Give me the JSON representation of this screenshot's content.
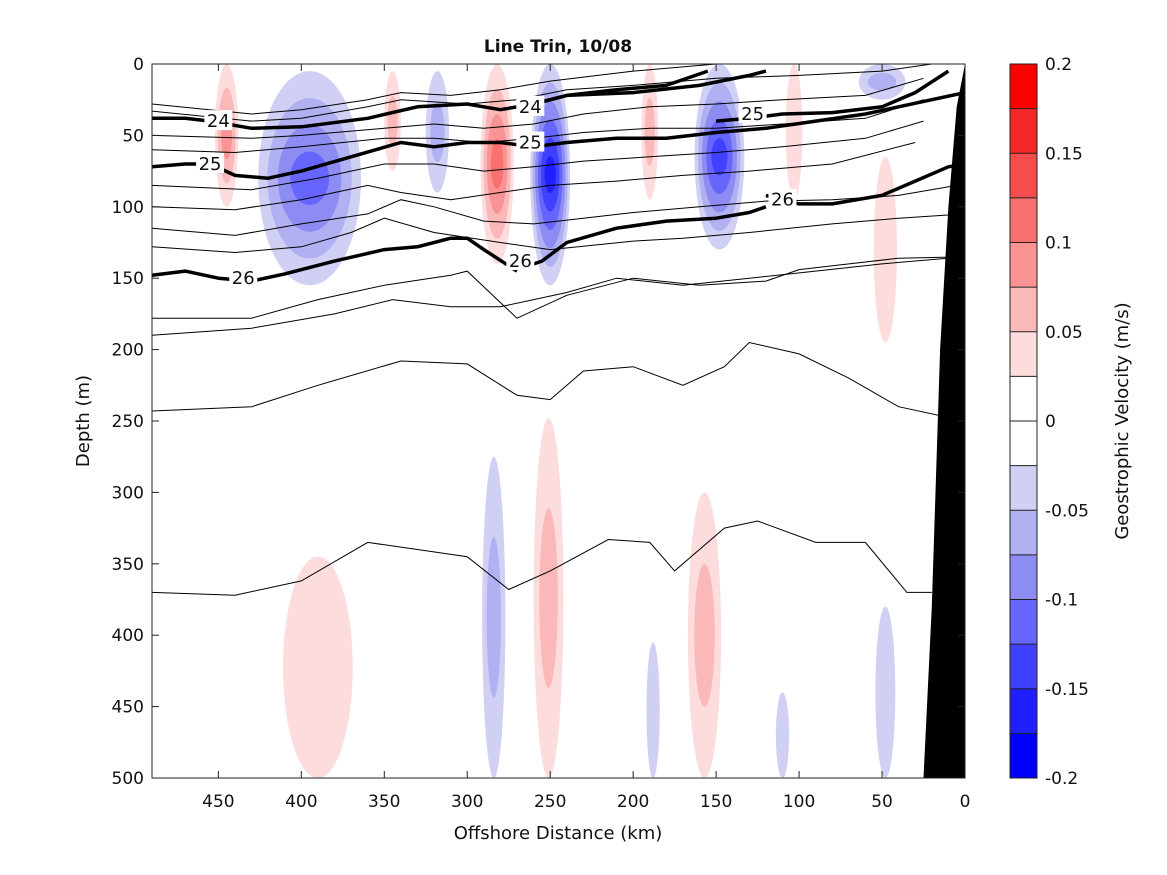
{
  "chart_data": {
    "type": "contour",
    "title": "Line Trin, 10/08",
    "xlabel": "Offshore Distance (km)",
    "ylabel": "Depth (m)",
    "colorbar_label": "Geostrophic Velocity (m/s)",
    "x_reversed": true,
    "y_reversed": true,
    "xlim": [
      490,
      0
    ],
    "ylim": [
      500,
      0
    ],
    "x_ticks": [
      450,
      400,
      350,
      300,
      250,
      200,
      150,
      100,
      50,
      0
    ],
    "y_ticks": [
      0,
      50,
      100,
      150,
      200,
      250,
      300,
      350,
      400,
      450,
      500
    ],
    "colorbar": {
      "range": [
        -0.2,
        0.2
      ],
      "levels": [
        -0.2,
        -0.175,
        -0.15,
        -0.125,
        -0.1,
        -0.075,
        -0.05,
        -0.025,
        0,
        0.025,
        0.05,
        0.075,
        0.1,
        0.125,
        0.15,
        0.175,
        0.2
      ],
      "tick_values": [
        0.2,
        0.15,
        0.1,
        0.05,
        0,
        -0.05,
        -0.1,
        -0.15,
        -0.2
      ],
      "tick_labels": [
        "0.2",
        "0.15",
        "0.1",
        "0.05",
        "0",
        "-0.05",
        "-0.1",
        "-0.15",
        "-0.2"
      ],
      "colors": [
        "#0000ff",
        "#2020ff",
        "#4040ff",
        "#6666ff",
        "#8c8cf2",
        "#b0b0f2",
        "#d0d0f5",
        "#ffffff",
        "#ffffff",
        "#fcdcdc",
        "#fbb8b8",
        "#fa9494",
        "#f87070",
        "#f64c4c",
        "#f42828",
        "#ff0000"
      ]
    },
    "velocity_cores": [
      {
        "x": 445,
        "y0": 0,
        "y1": 100,
        "w": 14,
        "v": 0.08
      },
      {
        "x": 395,
        "y0": 5,
        "y1": 155,
        "w": 62,
        "v": -0.1
      },
      {
        "x": 345,
        "y0": 5,
        "y1": 75,
        "w": 10,
        "v": 0.05
      },
      {
        "x": 318,
        "y0": 5,
        "y1": 90,
        "w": 14,
        "v": -0.06
      },
      {
        "x": 282,
        "y0": 0,
        "y1": 140,
        "w": 20,
        "v": 0.11
      },
      {
        "x": 250,
        "y0": 0,
        "y1": 155,
        "w": 24,
        "v": -0.16
      },
      {
        "x": 190,
        "y0": 0,
        "y1": 95,
        "w": 10,
        "v": 0.05
      },
      {
        "x": 148,
        "y0": 0,
        "y1": 130,
        "w": 30,
        "v": -0.13
      },
      {
        "x": 103,
        "y0": 0,
        "y1": 95,
        "w": 10,
        "v": 0.04
      },
      {
        "x": 50,
        "y0": 0,
        "y1": 25,
        "w": 28,
        "v": -0.05
      },
      {
        "x": 48,
        "y0": 65,
        "y1": 195,
        "w": 14,
        "v": 0.04
      },
      {
        "x": 390,
        "y0": 345,
        "y1": 500,
        "w": 42,
        "v": 0.04
      },
      {
        "x": 284,
        "y0": 275,
        "y1": 500,
        "w": 14,
        "v": -0.055
      },
      {
        "x": 251,
        "y0": 248,
        "y1": 500,
        "w": 18,
        "v": 0.065
      },
      {
        "x": 188,
        "y0": 405,
        "y1": 500,
        "w": 8,
        "v": -0.04
      },
      {
        "x": 157,
        "y0": 300,
        "y1": 500,
        "w": 20,
        "v": 0.05
      },
      {
        "x": 110,
        "y0": 440,
        "y1": 500,
        "w": 8,
        "v": -0.04
      },
      {
        "x": 48,
        "y0": 380,
        "y1": 500,
        "w": 12,
        "v": -0.04
      }
    ],
    "isopycnals_thin": [
      {
        "x": [
          490,
          430,
          400,
          360,
          340,
          310,
          280,
          250,
          200,
          150,
          100,
          50,
          10
        ],
        "y": [
          28,
          35,
          32,
          25,
          20,
          22,
          18,
          12,
          5,
          0,
          0,
          0,
          0
        ]
      },
      {
        "x": [
          490,
          430,
          400,
          360,
          340,
          300,
          270,
          240,
          200,
          150,
          100,
          50,
          20
        ],
        "y": [
          33,
          40,
          38,
          30,
          25,
          28,
          25,
          18,
          15,
          10,
          8,
          5,
          0
        ]
      },
      {
        "x": [
          490,
          430,
          400,
          350,
          320,
          290,
          260,
          230,
          190,
          150,
          110,
          60,
          25
        ],
        "y": [
          50,
          52,
          50,
          45,
          42,
          45,
          42,
          35,
          30,
          28,
          25,
          22,
          10
        ]
      },
      {
        "x": [
          490,
          440,
          400,
          350,
          320,
          290,
          260,
          230,
          190,
          150,
          110,
          60,
          25
        ],
        "y": [
          60,
          62,
          58,
          52,
          52,
          55,
          52,
          48,
          45,
          45,
          42,
          38,
          25
        ]
      },
      {
        "x": [
          490,
          430,
          390,
          350,
          320,
          290,
          260,
          230,
          190,
          150,
          110,
          60,
          25
        ],
        "y": [
          85,
          88,
          80,
          70,
          70,
          75,
          72,
          68,
          65,
          62,
          58,
          52,
          40
        ]
      },
      {
        "x": [
          490,
          440,
          400,
          360,
          340,
          310,
          280,
          250,
          210,
          170,
          130,
          80,
          30
        ],
        "y": [
          100,
          102,
          95,
          85,
          90,
          95,
          90,
          85,
          82,
          78,
          75,
          70,
          55
        ]
      },
      {
        "x": [
          490,
          440,
          400,
          360,
          340,
          320,
          290,
          260,
          230,
          200,
          160,
          120,
          80,
          40,
          5
        ],
        "y": [
          115,
          120,
          112,
          105,
          95,
          100,
          110,
          112,
          108,
          104,
          100,
          96,
          95,
          92,
          85
        ]
      },
      {
        "x": [
          490,
          440,
          400,
          370,
          350,
          320,
          280,
          250,
          200,
          170,
          130,
          80,
          40,
          0
        ],
        "y": [
          128,
          132,
          128,
          118,
          108,
          118,
          125,
          130,
          124,
          122,
          118,
          112,
          108,
          105
        ]
      },
      {
        "x": [
          490,
          430,
          380,
          345,
          310,
          280,
          240,
          210,
          170,
          130,
          90,
          50,
          0
        ],
        "y": [
          190,
          185,
          175,
          165,
          170,
          170,
          160,
          150,
          155,
          150,
          145,
          140,
          135
        ]
      },
      {
        "x": [
          490,
          430,
          390,
          350,
          310,
          300,
          270,
          240,
          200,
          160,
          120,
          100,
          70,
          40,
          0
        ],
        "y": [
          178,
          178,
          165,
          155,
          148,
          145,
          178,
          162,
          150,
          155,
          152,
          144,
          140,
          136,
          135
        ]
      },
      {
        "x": [
          490,
          430,
          390,
          340,
          300,
          270,
          250,
          230,
          200,
          170,
          145,
          130,
          100,
          70,
          40,
          0
        ],
        "y": [
          243,
          240,
          225,
          208,
          210,
          232,
          235,
          215,
          212,
          225,
          212,
          195,
          203,
          220,
          240,
          250
        ]
      },
      {
        "x": [
          490,
          440,
          400,
          360,
          330,
          300,
          275,
          250,
          215,
          190,
          175,
          145,
          125,
          90,
          60,
          35,
          20
        ],
        "y": [
          370,
          372,
          362,
          335,
          340,
          345,
          368,
          355,
          333,
          335,
          355,
          325,
          320,
          335,
          335,
          370,
          370
        ]
      }
    ],
    "isopycnals_labeled": [
      {
        "label": "24",
        "label_x": 450,
        "label_y": 40,
        "x": [
          490,
          470,
          455,
          430,
          400,
          360,
          330,
          300,
          280,
          260,
          240,
          210,
          180,
          155
        ],
        "y": [
          38,
          38,
          40,
          45,
          44,
          38,
          30,
          28,
          32,
          28,
          22,
          18,
          15,
          5
        ]
      },
      {
        "label": "24",
        "label_x": 262,
        "label_y": 30,
        "x": [
          260,
          240,
          200,
          160,
          130,
          120
        ],
        "y": [
          28,
          22,
          20,
          15,
          8,
          5
        ]
      },
      {
        "label": "25",
        "label_x": 128,
        "label_y": 35,
        "x": [
          150,
          130,
          110,
          80,
          50,
          30,
          10
        ],
        "y": [
          40,
          38,
          35,
          34,
          30,
          20,
          5
        ]
      },
      {
        "label": "25",
        "label_x": 455,
        "label_y": 70,
        "x": [
          490,
          470,
          455,
          440,
          420,
          400,
          370,
          340,
          320,
          300,
          280,
          260
        ],
        "y": [
          72,
          70,
          70,
          78,
          80,
          75,
          65,
          55,
          58,
          55,
          55,
          58
        ]
      },
      {
        "label": "25",
        "label_x": 262,
        "label_y": 55,
        "x": [
          260,
          240,
          210,
          180,
          150,
          120,
          90,
          60,
          40,
          20,
          0
        ],
        "y": [
          58,
          55,
          52,
          52,
          48,
          45,
          40,
          35,
          30,
          25,
          20
        ]
      },
      {
        "label": "26",
        "label_x": 110,
        "label_y": 95,
        "x": [
          120,
          100,
          80,
          50,
          30,
          10,
          0
        ],
        "y": [
          92,
          98,
          98,
          92,
          82,
          72,
          70
        ]
      },
      {
        "label": "26",
        "label_x": 435,
        "label_y": 150,
        "x": [
          490,
          470,
          450,
          430,
          410,
          380,
          350,
          330,
          310,
          300,
          290,
          270
        ],
        "y": [
          148,
          145,
          150,
          152,
          147,
          138,
          130,
          128,
          122,
          122,
          130,
          145
        ]
      },
      {
        "label": "26",
        "label_x": 268,
        "label_y": 138,
        "x": [
          265,
          255,
          240,
          210,
          180,
          150,
          130,
          120
        ],
        "y": [
          142,
          138,
          125,
          115,
          110,
          108,
          104,
          100
        ]
      }
    ],
    "bathymetry": {
      "x": [
        25,
        20,
        15,
        10,
        5,
        0
      ],
      "y": [
        500,
        380,
        200,
        100,
        30,
        0
      ]
    }
  }
}
